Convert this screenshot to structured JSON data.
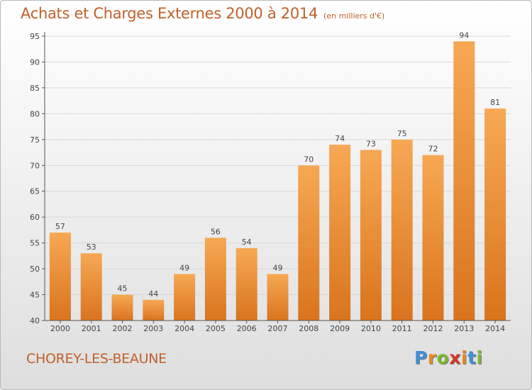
{
  "title": "Achats et Charges Externes 2000 à 2014",
  "subtitle": "(en milliers d'€)",
  "commune": "CHOREY-LES-BEAUNE",
  "logo": {
    "text": "Proxiti",
    "letter_colors": [
      "#3f8fd6",
      "#e58a1e",
      "#7cb82f",
      "#d6322d",
      "#e58a1e",
      "#3f8fd6",
      "#7cb82f"
    ]
  },
  "colors": {
    "title": "#c0602a",
    "bar_light": "#f7a854",
    "bar_dark": "#d9741d",
    "grid": "#d8d8d8",
    "axis": "#555555"
  },
  "chart_data": {
    "type": "bar",
    "categories": [
      "2000",
      "2001",
      "2002",
      "2003",
      "2004",
      "2005",
      "2006",
      "2007",
      "2008",
      "2009",
      "2010",
      "2011",
      "2012",
      "2013",
      "2014"
    ],
    "values": [
      57,
      53,
      45,
      44,
      49,
      56,
      54,
      49,
      70,
      74,
      73,
      75,
      72,
      94,
      81
    ],
    "ylim": [
      40,
      95
    ],
    "yticks": [
      40,
      45,
      50,
      55,
      60,
      65,
      70,
      75,
      80,
      85,
      90,
      95
    ],
    "grid": true,
    "xlabel": "",
    "ylabel": ""
  }
}
